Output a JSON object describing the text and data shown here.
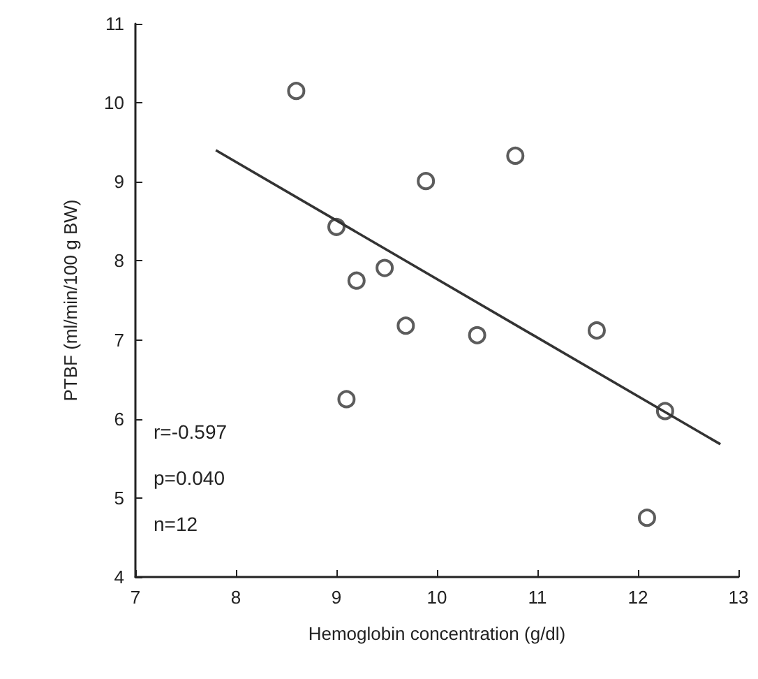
{
  "chart_data": {
    "type": "scatter",
    "xlabel": "Hemoglobin concentration (g/dl)",
    "ylabel": "PTBF (ml/min/100 g BW)",
    "series": [
      {
        "color": "#333333",
        "marker": "circle",
        "x": [
          8.6,
          10.78,
          9.89,
          9.0,
          9.48,
          9.2,
          9.69,
          10.4,
          11.59,
          9.1,
          12.27,
          12.09
        ],
        "values": [
          10.15,
          9.33,
          9.01,
          8.43,
          7.91,
          7.75,
          7.18,
          7.06,
          7.12,
          6.25,
          6.1,
          4.75
        ]
      },
      {
        "type": "line",
        "color": "#333333",
        "marker": "none",
        "x": [
          7.8,
          12.82
        ],
        "values": [
          9.4,
          5.68
        ]
      }
    ],
    "xlim": [
      7,
      13
    ],
    "xticks": [
      7,
      8,
      9,
      10,
      11,
      12,
      13
    ],
    "ylim": [
      4,
      11
    ],
    "yticks": [
      4,
      5,
      6,
      7,
      8,
      9,
      10,
      11
    ],
    "annotations": [
      "r=-0.597",
      "p=0.040",
      "n=12"
    ]
  }
}
